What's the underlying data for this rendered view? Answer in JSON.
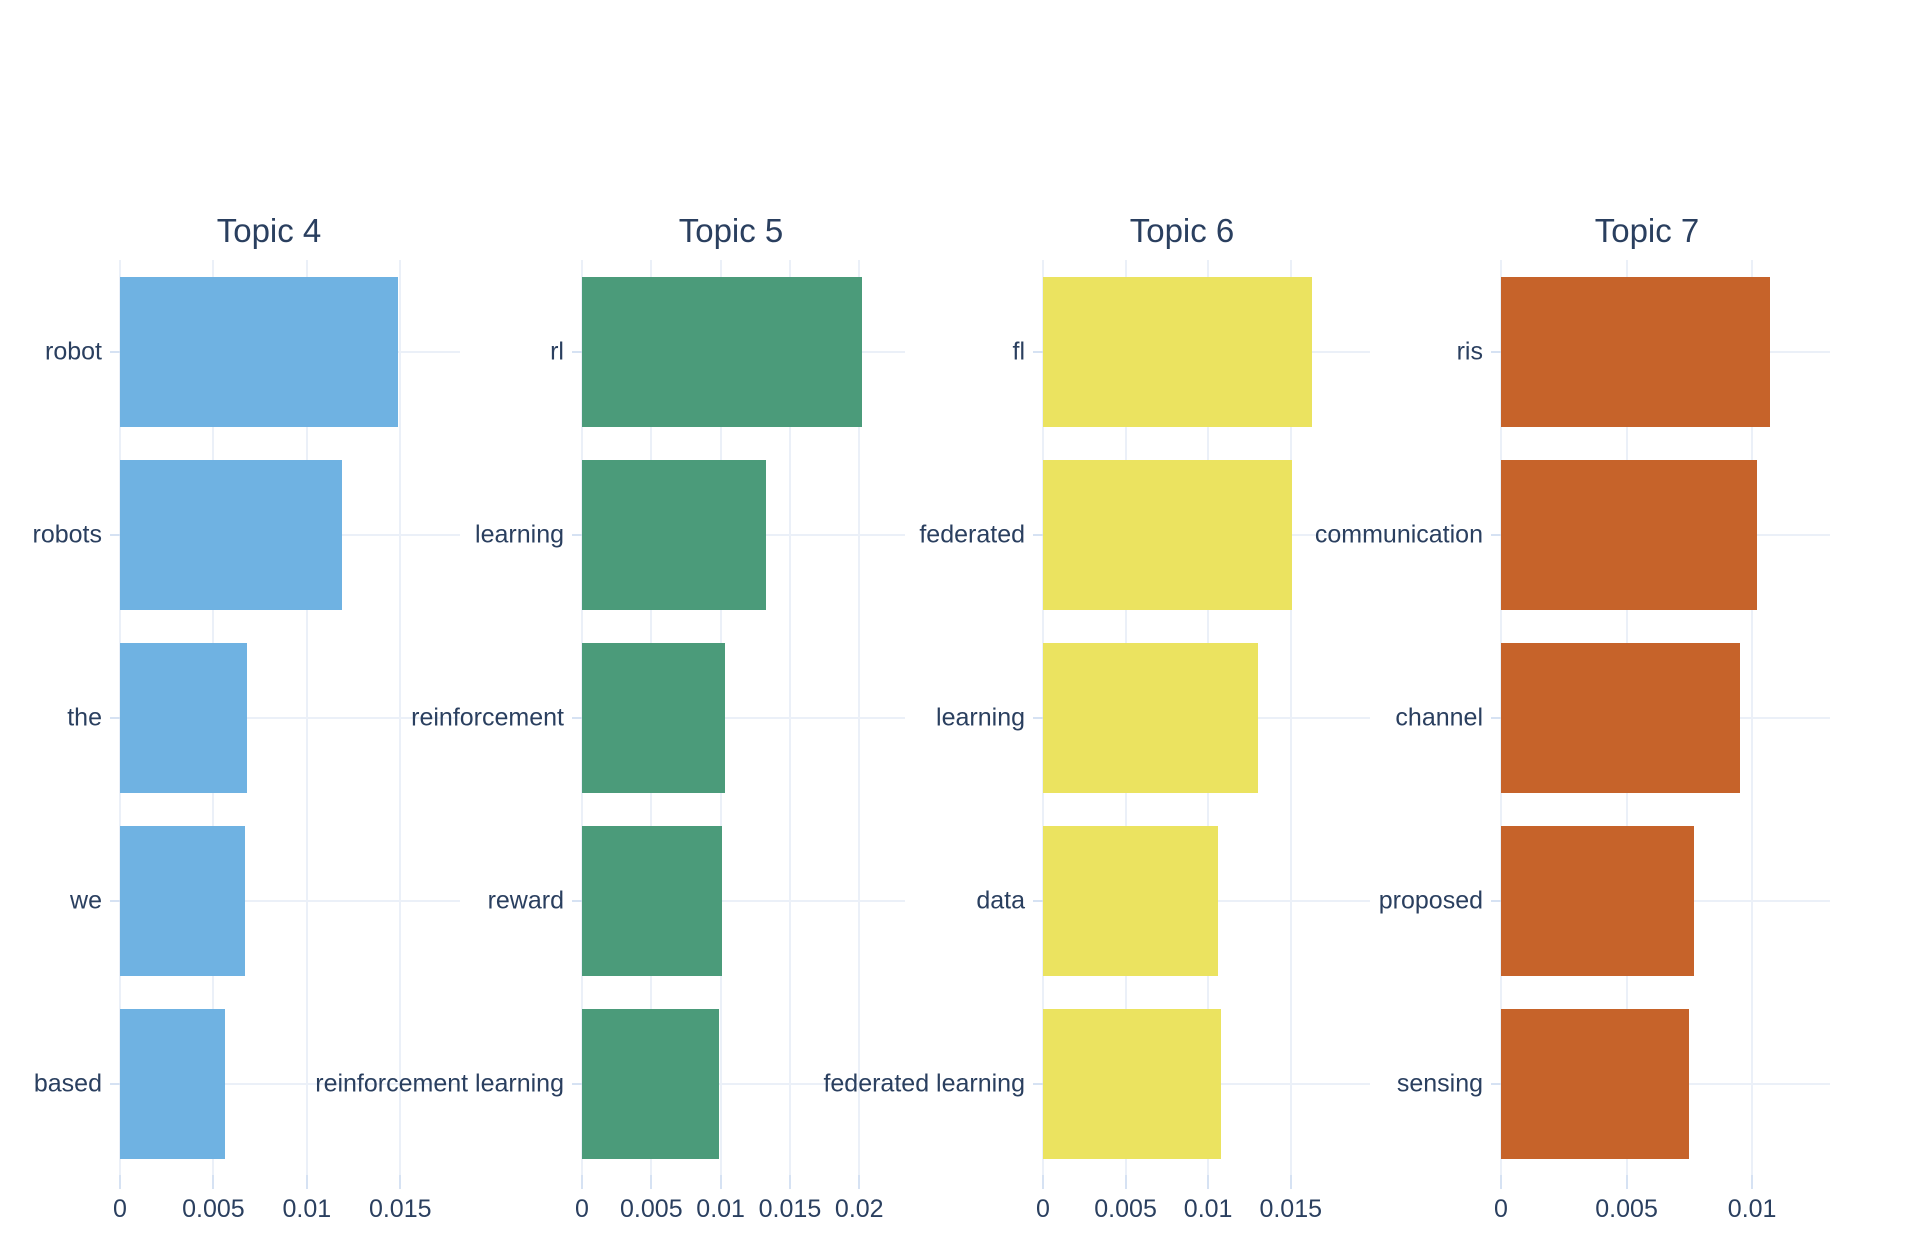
{
  "figure_title": "",
  "theme": {
    "background": "#ffffff",
    "text_color": "#2a3f5f",
    "grid_color": "#EBF0F8",
    "tick_mark_color": "#D6E2F3"
  },
  "chart_data": [
    {
      "type": "bar",
      "orientation": "horizontal",
      "title": "Topic 4",
      "bar_color": "#6FB2E2",
      "categories": [
        "robot",
        "robots",
        "the",
        "we",
        "based"
      ],
      "values": [
        0.0149,
        0.0119,
        0.0068,
        0.0067,
        0.0056
      ],
      "xticks": [
        0,
        0.005,
        0.01,
        0.015
      ],
      "xtick_labels": [
        "0",
        "0.005",
        "0.01",
        "0.015"
      ],
      "xlim": [
        0,
        0.0182
      ],
      "grid": true,
      "legend": "none"
    },
    {
      "type": "bar",
      "orientation": "horizontal",
      "title": "Topic 5",
      "bar_color": "#4B9B7A",
      "categories": [
        "rl",
        "learning",
        "reinforcement",
        "reward",
        "reinforcement learning"
      ],
      "values": [
        0.0202,
        0.0133,
        0.0103,
        0.0101,
        0.0099
      ],
      "xticks": [
        0,
        0.005,
        0.01,
        0.015,
        0.02
      ],
      "xtick_labels": [
        "0",
        "0.005",
        "0.01",
        "0.015",
        "0.02"
      ],
      "xlim": [
        0,
        0.0233
      ],
      "grid": true,
      "legend": "none"
    },
    {
      "type": "bar",
      "orientation": "horizontal",
      "title": "Topic 6",
      "bar_color": "#EBE360",
      "categories": [
        "fl",
        "federated",
        "learning",
        "data",
        "federated learning"
      ],
      "values": [
        0.0163,
        0.0151,
        0.013,
        0.0106,
        0.0108
      ],
      "xticks": [
        0,
        0.005,
        0.01,
        0.015
      ],
      "xtick_labels": [
        "0",
        "0.005",
        "0.01",
        "0.015"
      ],
      "xlim": [
        0,
        0.0198
      ],
      "grid": true,
      "legend": "none"
    },
    {
      "type": "bar",
      "orientation": "horizontal",
      "title": "Topic 7",
      "bar_color": "#C6632A",
      "categories": [
        "ris",
        "communication",
        "channel",
        "proposed",
        "sensing"
      ],
      "values": [
        0.0107,
        0.0102,
        0.0095,
        0.0077,
        0.0075
      ],
      "xticks": [
        0,
        0.005,
        0.01
      ],
      "xtick_labels": [
        "0",
        "0.005",
        "0.01"
      ],
      "xlim": [
        0,
        0.0131
      ],
      "grid": true,
      "legend": "none"
    }
  ]
}
